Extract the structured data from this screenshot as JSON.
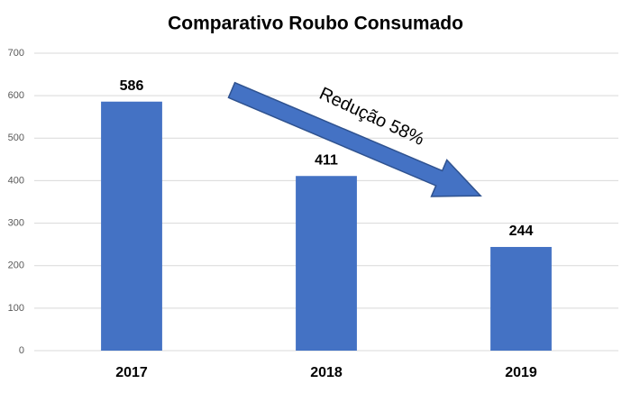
{
  "chart_data": {
    "type": "bar",
    "title": "Comparativo Roubo Consumado",
    "categories": [
      "2017",
      "2018",
      "2019"
    ],
    "values": [
      586,
      411,
      244
    ],
    "color": "#4472c4",
    "ylim": [
      0,
      700
    ],
    "yticks": [
      0,
      100,
      200,
      300,
      400,
      500,
      600,
      700
    ],
    "grid": true,
    "annotation": "Redução 58%"
  }
}
